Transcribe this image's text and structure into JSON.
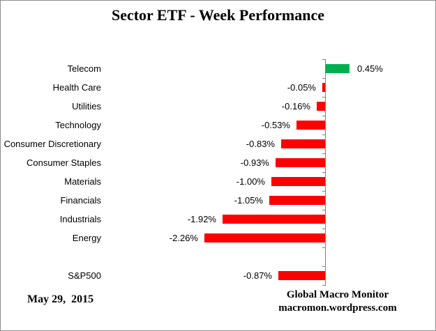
{
  "chart_data": {
    "type": "bar",
    "orientation": "horizontal",
    "title": "Sector ETF - Week Performance",
    "value_unit": "percent",
    "value_axis_labels_visible": false,
    "legend": "none",
    "colors": {
      "positive": "#00B050",
      "negative": "#FF0000",
      "axis": "#7f7f7f"
    },
    "categories": [
      "Telecom",
      "Health Care",
      "Utilities",
      "Technology",
      "Consumer Discretionary",
      "Consumer Staples",
      "Materials",
      "Financials",
      "Industrials",
      "Energy",
      "S&P500"
    ],
    "values": [
      0.45,
      -0.05,
      -0.16,
      -0.53,
      -0.83,
      -0.93,
      -1.0,
      -1.05,
      -1.92,
      -2.26,
      -0.87
    ],
    "points": [
      {
        "label": "Telecom",
        "value": 0.45,
        "display": "0.45%"
      },
      {
        "label": "Health Care",
        "value": -0.05,
        "display": "-0.05%"
      },
      {
        "label": "Utilities",
        "value": -0.16,
        "display": "-0.16%"
      },
      {
        "label": "Technology",
        "value": -0.53,
        "display": "-0.53%"
      },
      {
        "label": "Consumer Discretionary",
        "value": -0.83,
        "display": "-0.83%"
      },
      {
        "label": "Consumer Staples",
        "value": -0.93,
        "display": "-0.93%"
      },
      {
        "label": "Materials",
        "value": -1.0,
        "display": "-1.00%"
      },
      {
        "label": "Financials",
        "value": -1.05,
        "display": "-1.05%"
      },
      {
        "label": "Industrials",
        "value": -1.92,
        "display": "-1.92%"
      },
      {
        "label": "Energy",
        "value": -2.26,
        "display": "-2.26%"
      },
      {
        "label": "S&P500",
        "value": -0.87,
        "display": "-0.87%",
        "gap_before": true
      }
    ]
  },
  "footer": {
    "date": "May 29,  2015",
    "source_line1": "Global Macro Monitor",
    "source_line2": "macromon.wordpress.com"
  }
}
